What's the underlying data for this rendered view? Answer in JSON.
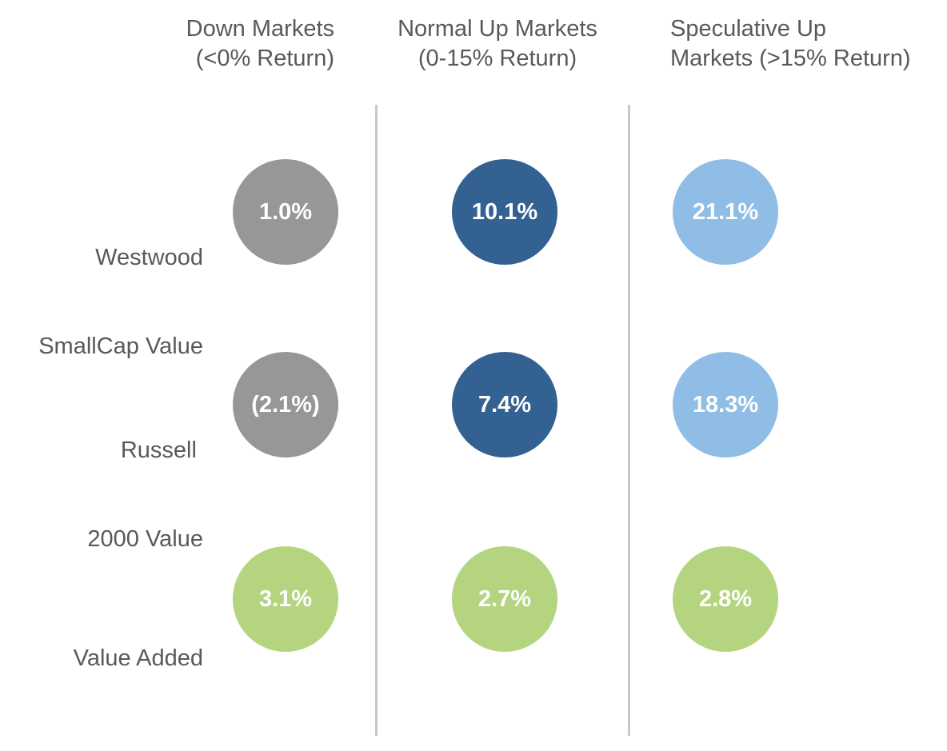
{
  "chart_data": {
    "type": "table",
    "columns": [
      {
        "lines": [
          "Down Markets",
          "(<0% Return)"
        ]
      },
      {
        "lines": [
          "Normal Up Markets",
          "(0-15% Return)"
        ]
      },
      {
        "lines": [
          "Speculative Up",
          "Markets (>15% Return)"
        ]
      }
    ],
    "rows": [
      {
        "lines": [
          "Westwood",
          "SmallCap Value"
        ],
        "values": [
          "1.0%",
          "10.1%",
          "21.1%"
        ]
      },
      {
        "lines": [
          "Russell ",
          "2000 Value"
        ],
        "values": [
          "(2.1%)",
          "7.4%",
          "18.3%"
        ]
      },
      {
        "lines": [
          "Value Added"
        ],
        "values": [
          "3.1%",
          "2.7%",
          "2.8%"
        ]
      }
    ],
    "numeric_values": [
      [
        1.0,
        10.1,
        21.1
      ],
      [
        -2.1,
        7.4,
        18.3
      ],
      [
        3.1,
        2.7,
        2.8
      ]
    ],
    "colors": {
      "down": "#969796",
      "normal_up": "#336192",
      "speculative_up": "#8fbde5",
      "value_added": "#b4d480",
      "text": "#595959",
      "divider": "#c9c9c4"
    }
  }
}
